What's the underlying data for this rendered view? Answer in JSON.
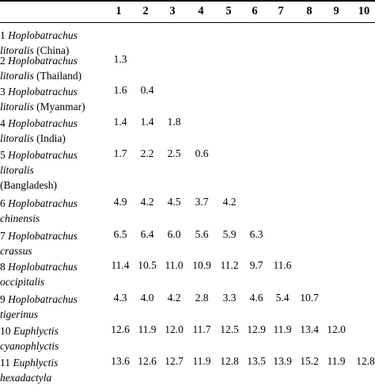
{
  "columns": [
    "1",
    "2",
    "3",
    "4",
    "5",
    "6",
    "7",
    "8",
    "9",
    "10"
  ],
  "rows": [
    {
      "num": "1",
      "genus": "Hoplobatrachus",
      "species": "litoralis",
      "locality": "(China)",
      "values": []
    },
    {
      "num": "2",
      "genus": "Hoplobatrachus",
      "species": "litoralis",
      "locality": "(Thailand)",
      "values": [
        "1.3"
      ]
    },
    {
      "num": "3",
      "genus": "Hoplobatrachus",
      "species": "litoralis",
      "locality": "(Myanmar)",
      "values": [
        "1.6",
        "0.4"
      ]
    },
    {
      "num": "4",
      "genus": "Hoplobatrachus",
      "species": "litoralis",
      "locality": "(India)",
      "values": [
        "1.4",
        "1.4",
        "1.8"
      ]
    },
    {
      "num": "5",
      "genus": "Hoplobatrachus",
      "species": "litoralis",
      "locality": "(Bangladesh)",
      "values": [
        "1.7",
        "2.2",
        "2.5",
        "0.6"
      ]
    },
    {
      "num": "6",
      "genus": "Hoplobatrachus",
      "species": "chinensis",
      "locality": "",
      "values": [
        "4.9",
        "4.2",
        "4.5",
        "3.7",
        "4.2"
      ]
    },
    {
      "num": "7",
      "genus": "Hoplobatrachus",
      "species": "crassus",
      "locality": "",
      "values": [
        "6.5",
        "6.4",
        "6.0",
        "5.6",
        "5.9",
        "6.3"
      ]
    },
    {
      "num": "8",
      "genus": "Hoplobatrachus",
      "species": "occipitalis",
      "locality": "",
      "values": [
        "11.4",
        "10.5",
        "11.0",
        "10.9",
        "11.2",
        "9.7",
        "11.6"
      ]
    },
    {
      "num": "9",
      "genus": "Hoplobatrachus",
      "species": "tigerinus",
      "locality": "",
      "values": [
        "4.3",
        "4.0",
        "4.2",
        "2.8",
        "3.3",
        "4.6",
        "5.4",
        "10.7"
      ]
    },
    {
      "num": "10",
      "genus": "Euphlyctis",
      "species": "cyanophlyctis",
      "locality": "",
      "values": [
        "12.6",
        "11.9",
        "12.0",
        "11.7",
        "12.5",
        "12.9",
        "11.9",
        "13.4",
        "12.0"
      ]
    },
    {
      "num": "11",
      "genus": "Euphlyctis",
      "species": "hexadactyla",
      "locality": "",
      "values": [
        "13.6",
        "12.6",
        "12.7",
        "11.9",
        "12.8",
        "13.5",
        "13.9",
        "15.2",
        "11.9",
        "12.8"
      ]
    }
  ]
}
